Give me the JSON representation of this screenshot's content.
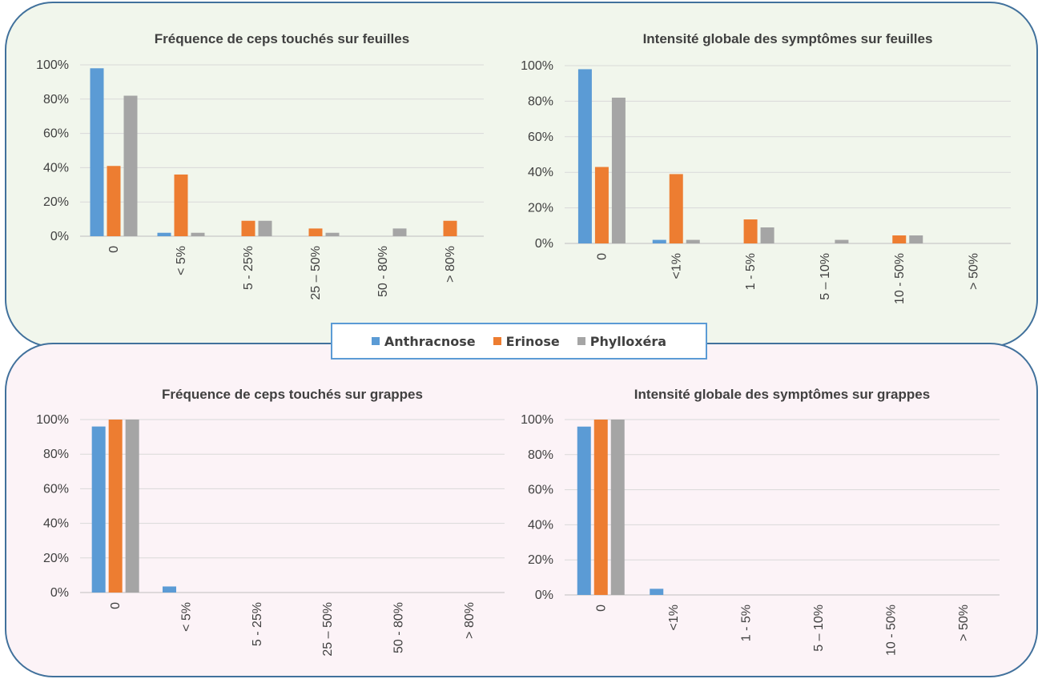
{
  "colors": {
    "anthracnose": "#5b9bd5",
    "erinose": "#ed7d31",
    "phylloxera": "#a5a5a5"
  },
  "legend": [
    {
      "label": "Anthracnose",
      "color": "#5b9bd5"
    },
    {
      "label": "Erinose",
      "color": "#ed7d31"
    },
    {
      "label": "Phylloxéra",
      "color": "#a5a5a5"
    }
  ],
  "chart_data": [
    {
      "type": "bar",
      "title": "Fréquence de ceps touchés sur feuilles",
      "categories": [
        "0",
        "< 5%",
        "5 - 25%",
        "25 – 50%",
        "50 - 80%",
        "> 80%"
      ],
      "ylim": [
        0,
        1
      ],
      "yticks": [
        "0%",
        "20%",
        "40%",
        "60%",
        "80%",
        "100%"
      ],
      "grid": true,
      "series": [
        {
          "name": "Anthracnose",
          "values": [
            0.98,
            0.02,
            0,
            0,
            0,
            0
          ]
        },
        {
          "name": "Erinose",
          "values": [
            0.41,
            0.36,
            0.09,
            0.045,
            0,
            0.09
          ]
        },
        {
          "name": "Phylloxéra",
          "values": [
            0.82,
            0.02,
            0.09,
            0.02,
            0.045,
            0
          ]
        }
      ]
    },
    {
      "type": "bar",
      "title": "Intensité globale des symptômes sur feuilles",
      "categories": [
        "0",
        "<1%",
        "1 - 5%",
        "5 – 10%",
        "10 - 50%",
        "> 50%"
      ],
      "ylim": [
        0,
        1
      ],
      "yticks": [
        "0%",
        "20%",
        "40%",
        "60%",
        "80%",
        "100%"
      ],
      "grid": true,
      "series": [
        {
          "name": "Anthracnose",
          "values": [
            0.98,
            0.02,
            0,
            0,
            0,
            0
          ]
        },
        {
          "name": "Erinose",
          "values": [
            0.43,
            0.39,
            0.135,
            0,
            0.045,
            0
          ]
        },
        {
          "name": "Phylloxéra",
          "values": [
            0.82,
            0.02,
            0.09,
            0.02,
            0.045,
            0
          ]
        }
      ]
    },
    {
      "type": "bar",
      "title": "Fréquence de ceps touchés sur grappes",
      "categories": [
        "0",
        "< 5%",
        "5 - 25%",
        "25 – 50%",
        "50 - 80%",
        "> 80%"
      ],
      "ylim": [
        0,
        1
      ],
      "yticks": [
        "0%",
        "20%",
        "40%",
        "60%",
        "80%",
        "100%"
      ],
      "grid": true,
      "series": [
        {
          "name": "Anthracnose",
          "values": [
            0.96,
            0.035,
            0,
            0,
            0,
            0
          ]
        },
        {
          "name": "Erinose",
          "values": [
            1.0,
            0,
            0,
            0,
            0,
            0
          ]
        },
        {
          "name": "Phylloxéra",
          "values": [
            1.0,
            0,
            0,
            0,
            0,
            0
          ]
        }
      ]
    },
    {
      "type": "bar",
      "title": "Intensité globale des symptômes sur grappes",
      "categories": [
        "0",
        "<1%",
        "1 - 5%",
        "5 – 10%",
        "10 - 50%",
        "> 50%"
      ],
      "ylim": [
        0,
        1
      ],
      "yticks": [
        "0%",
        "20%",
        "40%",
        "60%",
        "80%",
        "100%"
      ],
      "grid": true,
      "series": [
        {
          "name": "Anthracnose",
          "values": [
            0.96,
            0.035,
            0,
            0,
            0,
            0
          ]
        },
        {
          "name": "Erinose",
          "values": [
            1.0,
            0,
            0,
            0,
            0,
            0
          ]
        },
        {
          "name": "Phylloxéra",
          "values": [
            1.0,
            0,
            0,
            0,
            0,
            0
          ]
        }
      ]
    }
  ]
}
